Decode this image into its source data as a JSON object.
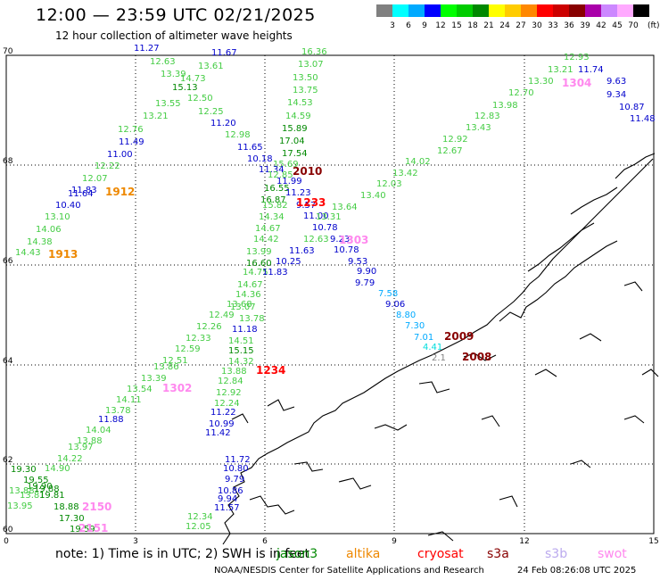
{
  "header": {
    "title": "12:00 — 23:59 UTC 02/21/2025",
    "subtitle": "12 hour collection of altimeter wave heights"
  },
  "colorbar": {
    "colors": [
      "#808080",
      "#00ffff",
      "#00aaff",
      "#0000ff",
      "#00ff00",
      "#00cc00",
      "#008800",
      "#ffff00",
      "#ffcc00",
      "#ff8800",
      "#ff0000",
      "#cc0000",
      "#880000",
      "#aa00aa",
      "#cc88ff",
      "#ffaaff",
      "#000000"
    ],
    "labels": [
      "3",
      "6",
      "9",
      "12",
      "15",
      "18",
      "21",
      "24",
      "27",
      "30",
      "33",
      "36",
      "39",
      "42",
      "45",
      "70"
    ],
    "unit": "(ft)"
  },
  "axes": {
    "lon_ticks": [
      "0",
      "3",
      "6",
      "9",
      "12",
      "15"
    ],
    "lat_ticks": [
      "70",
      "68",
      "66",
      "64",
      "62",
      "60"
    ]
  },
  "passes": [
    {
      "label": "1912",
      "color": "#ee8800"
    },
    {
      "label": "1913",
      "color": "#ee8800"
    },
    {
      "label": "2010",
      "color": "#880000"
    },
    {
      "label": "1233",
      "color": "#ff0000"
    },
    {
      "label": "1303",
      "color": "#ff88ee"
    },
    {
      "label": "1304",
      "color": "#ff88ee"
    },
    {
      "label": "2009",
      "color": "#880000"
    },
    {
      "label": "2008",
      "color": "#880000"
    },
    {
      "label": "1234",
      "color": "#ff0000"
    },
    {
      "label": "1302",
      "color": "#ff88ee"
    },
    {
      "label": "2150",
      "color": "#ff88ee"
    },
    {
      "label": "2151",
      "color": "#ff88ee"
    }
  ],
  "wave_labels": [
    {
      "v": "11.27",
      "c": "#0000cc"
    },
    {
      "v": "12.63",
      "c": "#44cc44"
    },
    {
      "v": "13.39",
      "c": "#44cc44"
    },
    {
      "v": "14.73",
      "c": "#44cc44"
    },
    {
      "v": "15.13",
      "c": "#008800"
    },
    {
      "v": "13.55",
      "c": "#44cc44"
    },
    {
      "v": "12.50",
      "c": "#44cc44"
    },
    {
      "v": "13.61",
      "c": "#44cc44"
    },
    {
      "v": "11.67",
      "c": "#0000cc"
    },
    {
      "v": "12.25",
      "c": "#44cc44"
    },
    {
      "v": "13.21",
      "c": "#44cc44"
    },
    {
      "v": "12.76",
      "c": "#44cc44"
    },
    {
      "v": "11.20",
      "c": "#0000cc"
    },
    {
      "v": "12.98",
      "c": "#44cc44"
    },
    {
      "v": "11.49",
      "c": "#0000cc"
    },
    {
      "v": "11.00",
      "c": "#0000cc"
    },
    {
      "v": "11.65",
      "c": "#0000cc"
    },
    {
      "v": "10.18",
      "c": "#0000cc"
    },
    {
      "v": "12.22",
      "c": "#44cc44"
    },
    {
      "v": "12.07",
      "c": "#44cc44"
    },
    {
      "v": "11.83",
      "c": "#0000cc"
    },
    {
      "v": "11.64",
      "c": "#0000cc"
    },
    {
      "v": "10.40",
      "c": "#0000cc"
    },
    {
      "v": "13.10",
      "c": "#44cc44"
    },
    {
      "v": "14.06",
      "c": "#44cc44"
    },
    {
      "v": "14.38",
      "c": "#44cc44"
    },
    {
      "v": "14.43",
      "c": "#44cc44"
    },
    {
      "v": "16.36",
      "c": "#44cc44"
    },
    {
      "v": "13.07",
      "c": "#44cc44"
    },
    {
      "v": "13.50",
      "c": "#44cc44"
    },
    {
      "v": "13.75",
      "c": "#44cc44"
    },
    {
      "v": "14.53",
      "c": "#44cc44"
    },
    {
      "v": "14.59",
      "c": "#44cc44"
    },
    {
      "v": "15.89",
      "c": "#008800"
    },
    {
      "v": "17.04",
      "c": "#008800"
    },
    {
      "v": "17.54",
      "c": "#008800"
    },
    {
      "v": "15.69",
      "c": "#44cc44"
    },
    {
      "v": "11.34",
      "c": "#0000cc"
    },
    {
      "v": "12.85",
      "c": "#44cc44"
    },
    {
      "v": "11.99",
      "c": "#0000cc"
    },
    {
      "v": "16.55",
      "c": "#008800"
    },
    {
      "v": "11.23",
      "c": "#0000cc"
    },
    {
      "v": "16.87",
      "c": "#008800"
    },
    {
      "v": "15.82",
      "c": "#44cc44"
    },
    {
      "v": "9.57",
      "c": "#0000cc"
    },
    {
      "v": "14.34",
      "c": "#44cc44"
    },
    {
      "v": "11.00",
      "c": "#0000cc"
    },
    {
      "v": "14.67",
      "c": "#44cc44"
    },
    {
      "v": "10.78",
      "c": "#0000cc"
    },
    {
      "v": "14.42",
      "c": "#44cc44"
    },
    {
      "v": "12.63",
      "c": "#44cc44"
    },
    {
      "v": "9.23",
      "c": "#0000cc"
    },
    {
      "v": "13.99",
      "c": "#44cc44"
    },
    {
      "v": "11.63",
      "c": "#0000cc"
    },
    {
      "v": "10.78",
      "c": "#0000cc"
    },
    {
      "v": "16.60",
      "c": "#008800"
    },
    {
      "v": "10.25",
      "c": "#0000cc"
    },
    {
      "v": "14.75",
      "c": "#44cc44"
    },
    {
      "v": "11.83",
      "c": "#0000cc"
    },
    {
      "v": "13.31",
      "c": "#44cc44"
    },
    {
      "v": "13.64",
      "c": "#44cc44"
    },
    {
      "v": "13.40",
      "c": "#44cc44"
    },
    {
      "v": "12.03",
      "c": "#44cc44"
    },
    {
      "v": "13.42",
      "c": "#44cc44"
    },
    {
      "v": "14.02",
      "c": "#44cc44"
    },
    {
      "v": "12.67",
      "c": "#44cc44"
    },
    {
      "v": "12.92",
      "c": "#44cc44"
    },
    {
      "v": "13.43",
      "c": "#44cc44"
    },
    {
      "v": "12.83",
      "c": "#44cc44"
    },
    {
      "v": "13.98",
      "c": "#44cc44"
    },
    {
      "v": "12.70",
      "c": "#44cc44"
    },
    {
      "v": "13.30",
      "c": "#44cc44"
    },
    {
      "v": "13.21",
      "c": "#44cc44"
    },
    {
      "v": "12.93",
      "c": "#44cc44"
    },
    {
      "v": "11.74",
      "c": "#0000cc"
    },
    {
      "v": "9.63",
      "c": "#0000cc"
    },
    {
      "v": "9.34",
      "c": "#0000cc"
    },
    {
      "v": "10.87",
      "c": "#0000cc"
    },
    {
      "v": "11.48",
      "c": "#0000cc"
    },
    {
      "v": "9.53",
      "c": "#0000cc"
    },
    {
      "v": "9.90",
      "c": "#0000cc"
    },
    {
      "v": "9.79",
      "c": "#0000cc"
    },
    {
      "v": "7.58",
      "c": "#00aaff"
    },
    {
      "v": "9.06",
      "c": "#0000cc"
    },
    {
      "v": "8.80",
      "c": "#00aaff"
    },
    {
      "v": "7.30",
      "c": "#00aaff"
    },
    {
      "v": "7.01",
      "c": "#00aaff"
    },
    {
      "v": "4.41",
      "c": "#00dddd"
    },
    {
      "v": "2.1",
      "c": "#808080"
    },
    {
      "v": "14.67",
      "c": "#44cc44"
    },
    {
      "v": "14.36",
      "c": "#44cc44"
    },
    {
      "v": "13.68",
      "c": "#44cc44"
    },
    {
      "v": "13.07",
      "c": "#44cc44"
    },
    {
      "v": "12.49",
      "c": "#44cc44"
    },
    {
      "v": "13.78",
      "c": "#44cc44"
    },
    {
      "v": "12.26",
      "c": "#44cc44"
    },
    {
      "v": "11.18",
      "c": "#0000cc"
    },
    {
      "v": "12.33",
      "c": "#44cc44"
    },
    {
      "v": "14.51",
      "c": "#44cc44"
    },
    {
      "v": "12.59",
      "c": "#44cc44"
    },
    {
      "v": "15.15",
      "c": "#008800"
    },
    {
      "v": "12.51",
      "c": "#44cc44"
    },
    {
      "v": "14.32",
      "c": "#44cc44"
    },
    {
      "v": "13.86",
      "c": "#44cc44"
    },
    {
      "v": "13.88",
      "c": "#44cc44"
    },
    {
      "v": "13.39",
      "c": "#44cc44"
    },
    {
      "v": "12.84",
      "c": "#44cc44"
    },
    {
      "v": "13.54",
      "c": "#44cc44"
    },
    {
      "v": "12.92",
      "c": "#44cc44"
    },
    {
      "v": "14.11",
      "c": "#44cc44"
    },
    {
      "v": "12.24",
      "c": "#44cc44"
    },
    {
      "v": "13.78",
      "c": "#44cc44"
    },
    {
      "v": "11.22",
      "c": "#0000cc"
    },
    {
      "v": "11.88",
      "c": "#0000cc"
    },
    {
      "v": "10.99",
      "c": "#0000cc"
    },
    {
      "v": "14.04",
      "c": "#44cc44"
    },
    {
      "v": "11.42",
      "c": "#0000cc"
    },
    {
      "v": "13.88",
      "c": "#44cc44"
    },
    {
      "v": "13.97",
      "c": "#44cc44"
    },
    {
      "v": "14.22",
      "c": "#44cc44"
    },
    {
      "v": "19.30",
      "c": "#008800"
    },
    {
      "v": "14.90",
      "c": "#44cc44"
    },
    {
      "v": "19.55",
      "c": "#008800"
    },
    {
      "v": "19.90",
      "c": "#008800"
    },
    {
      "v": "19.88",
      "c": "#008800"
    },
    {
      "v": "13.88",
      "c": "#44cc44"
    },
    {
      "v": "13.81",
      "c": "#44cc44"
    },
    {
      "v": "19.81",
      "c": "#008800"
    },
    {
      "v": "13.95",
      "c": "#44cc44"
    },
    {
      "v": "18.88",
      "c": "#008800"
    },
    {
      "v": "17.30",
      "c": "#008800"
    },
    {
      "v": "19.59",
      "c": "#008800"
    },
    {
      "v": "11.72",
      "c": "#0000cc"
    },
    {
      "v": "10.80",
      "c": "#0000cc"
    },
    {
      "v": "9.79",
      "c": "#0000cc"
    },
    {
      "v": "10.86",
      "c": "#0000cc"
    },
    {
      "v": "9.94",
      "c": "#0000cc"
    },
    {
      "v": "11.57",
      "c": "#0000cc"
    },
    {
      "v": "12.34",
      "c": "#44cc44"
    },
    {
      "v": "12.05",
      "c": "#44cc44"
    }
  ],
  "note": {
    "text": "note: 1) Time is in UTC; 2) SWH is in feet",
    "legend": [
      {
        "label": "jason3",
        "color": "#008800"
      },
      {
        "label": "altika",
        "color": "#ee8800"
      },
      {
        "label": "cryosat",
        "color": "#ff0000"
      },
      {
        "label": "s3a",
        "color": "#880000"
      },
      {
        "label": "s3b",
        "color": "#bbaaee"
      },
      {
        "label": "swot",
        "color": "#ff88ee"
      }
    ]
  },
  "footer": {
    "agency": "NOAA/NESDIS Center for Satellite Applications and Research",
    "timestamp": "24 Feb 08:26:08 UTC 2025"
  }
}
